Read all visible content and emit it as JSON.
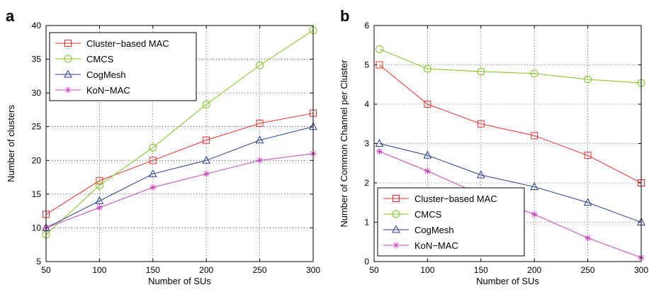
{
  "chart_data": [
    {
      "panel_label": "a",
      "type": "line",
      "xlabel": "Number of SUs",
      "ylabel": "Number of clusters",
      "xlim": [
        50,
        300
      ],
      "ylim": [
        5,
        40
      ],
      "xticks": [
        50,
        100,
        150,
        200,
        250,
        300
      ],
      "yticks": [
        5,
        10,
        15,
        20,
        25,
        30,
        35,
        40
      ],
      "grid": true,
      "legend_position": "top-left",
      "series": [
        {
          "name": "Cluster−based MAC",
          "color": "#e8302a",
          "marker": "square",
          "x": [
            50,
            100,
            150,
            200,
            250,
            300
          ],
          "y": [
            12,
            17,
            20,
            23,
            25.5,
            27
          ]
        },
        {
          "name": "CMCS",
          "color": "#7fc31c",
          "marker": "circle",
          "x": [
            50,
            100,
            150,
            200,
            250,
            300
          ],
          "y": [
            9,
            16.3,
            21.9,
            28.3,
            34.1,
            39.3
          ]
        },
        {
          "name": "CogMesh",
          "color": "#2b3d8f",
          "marker": "triangle",
          "x": [
            50,
            100,
            150,
            200,
            250,
            300
          ],
          "y": [
            10,
            14,
            18,
            20,
            23,
            25
          ]
        },
        {
          "name": "KoN−MAC",
          "color": "#cc44bb",
          "marker": "star",
          "x": [
            50,
            100,
            150,
            200,
            250,
            300
          ],
          "y": [
            10,
            13,
            16,
            18,
            20,
            21
          ]
        }
      ]
    },
    {
      "panel_label": "b",
      "type": "line",
      "xlabel": "Number of SUs",
      "ylabel": "Number of Common Channel per Cluster",
      "xlim": [
        50,
        300
      ],
      "ylim": [
        0,
        6
      ],
      "xticks": [
        50,
        100,
        150,
        200,
        250,
        300
      ],
      "yticks": [
        0,
        1,
        2,
        3,
        4,
        5,
        6
      ],
      "grid": true,
      "legend_position": "bottom-left",
      "series": [
        {
          "name": "Cluster−based MAC",
          "color": "#e8302a",
          "marker": "square",
          "x": [
            55,
            100,
            150,
            200,
            250,
            300
          ],
          "y": [
            5.0,
            4.0,
            3.5,
            3.2,
            2.7,
            2.0
          ]
        },
        {
          "name": "CMCS",
          "color": "#7fc31c",
          "marker": "circle",
          "x": [
            55,
            100,
            150,
            200,
            250,
            300
          ],
          "y": [
            5.4,
            4.9,
            4.83,
            4.78,
            4.63,
            4.54
          ]
        },
        {
          "name": "CogMesh",
          "color": "#2b3d8f",
          "marker": "triangle",
          "x": [
            55,
            100,
            150,
            200,
            250,
            300
          ],
          "y": [
            3.0,
            2.7,
            2.2,
            1.9,
            1.5,
            1.0
          ]
        },
        {
          "name": "KoN−MAC",
          "color": "#cc44bb",
          "marker": "star",
          "x": [
            55,
            100,
            150,
            200,
            250,
            300
          ],
          "y": [
            2.8,
            2.3,
            1.7,
            1.2,
            0.6,
            0.1
          ]
        }
      ]
    }
  ]
}
